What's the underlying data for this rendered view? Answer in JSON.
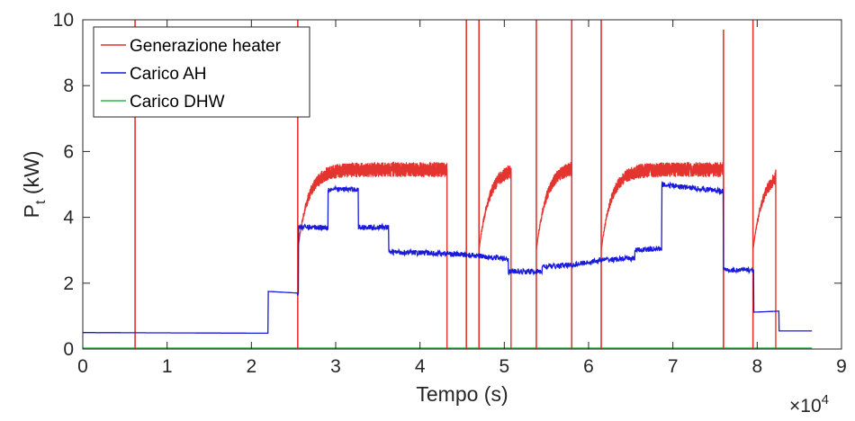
{
  "chart_data": {
    "type": "line",
    "xlabel": "Tempo (s)",
    "ylabel_main": "P",
    "ylabel_sub": "t",
    "ylabel_unit": " (kW)",
    "x_exponent_label": "×10",
    "x_exponent_power": "4",
    "xlim": [
      0,
      9
    ],
    "ylim": [
      0,
      10
    ],
    "x_ticks": [
      0,
      1,
      2,
      3,
      4,
      5,
      6,
      7,
      8,
      9
    ],
    "y_ticks": [
      0,
      2,
      4,
      6,
      8,
      10
    ],
    "legend_position": "top-left",
    "grid": false,
    "x_scale_note": "x values in units of 10^4 s",
    "series": [
      {
        "name": "Generazione heater",
        "color": "#e3342f",
        "mode": "heater",
        "values_description": "on/off heater power with saturation plateaus",
        "spikes": [
          0.62,
          2.55,
          4.55,
          4.7,
          5.38,
          5.8,
          6.15,
          7.6,
          7.95
        ],
        "spike_peaks": [
          10,
          10,
          10,
          10,
          10,
          10,
          10,
          9.7,
          10
        ],
        "segments": [
          {
            "x_start": 2.55,
            "x_end": 4.32,
            "plateau": 5.45
          },
          {
            "x_start": 4.7,
            "x_end": 5.08,
            "plateau": 5.5
          },
          {
            "x_start": 5.38,
            "x_end": 5.8,
            "plateau": 5.55
          },
          {
            "x_start": 6.15,
            "x_end": 7.6,
            "plateau": 5.45
          },
          {
            "x_start": 7.95,
            "x_end": 8.22,
            "plateau": 5.45
          }
        ]
      },
      {
        "name": "Carico AH",
        "color": "#1a1adb",
        "mode": "steps",
        "steps": [
          [
            0,
            0.5
          ],
          [
            2.18,
            0.48
          ],
          [
            2.2,
            1.75
          ],
          [
            2.55,
            1.7
          ],
          [
            2.56,
            3.7
          ],
          [
            2.9,
            3.7
          ],
          [
            2.91,
            4.85
          ],
          [
            3.26,
            4.85
          ],
          [
            3.27,
            3.7
          ],
          [
            3.62,
            3.7
          ],
          [
            3.63,
            2.95
          ],
          [
            4.3,
            2.9
          ],
          [
            4.6,
            2.85
          ],
          [
            5.0,
            2.75
          ],
          [
            5.05,
            2.35
          ],
          [
            5.4,
            2.35
          ],
          [
            5.45,
            2.5
          ],
          [
            5.8,
            2.55
          ],
          [
            6.15,
            2.7
          ],
          [
            6.5,
            2.75
          ],
          [
            6.55,
            3.0
          ],
          [
            6.85,
            3.05
          ],
          [
            6.87,
            5.0
          ],
          [
            7.2,
            4.9
          ],
          [
            7.58,
            4.8
          ],
          [
            7.6,
            2.4
          ],
          [
            7.95,
            2.4
          ],
          [
            7.96,
            1.12
          ],
          [
            8.25,
            1.15
          ],
          [
            8.26,
            0.55
          ],
          [
            8.65,
            0.55
          ]
        ],
        "end_x": 8.65
      },
      {
        "name": "Carico DHW",
        "color": "#2db84b",
        "mode": "flat",
        "x": [
          0,
          8.65
        ],
        "values": [
          0.02,
          0.02
        ]
      }
    ]
  }
}
